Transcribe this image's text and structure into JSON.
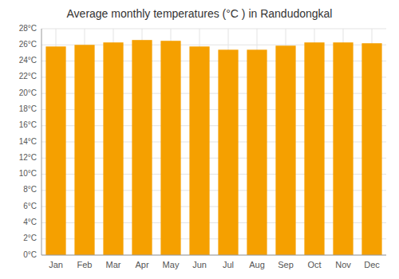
{
  "chart_data": {
    "type": "bar",
    "title": "Average monthly temperatures (°C ) in Randudongkal",
    "categories": [
      "Jan",
      "Feb",
      "Mar",
      "Apr",
      "May",
      "Jun",
      "Jul",
      "Aug",
      "Sep",
      "Oct",
      "Nov",
      "Dec"
    ],
    "values": [
      25.8,
      26.0,
      26.3,
      26.6,
      26.5,
      25.8,
      25.4,
      25.4,
      25.9,
      26.3,
      26.3,
      26.2
    ],
    "color": "#F5A000",
    "ylim": [
      0,
      28
    ],
    "yticks": [
      {
        "value": 0,
        "label": "0°C"
      },
      {
        "value": 2,
        "label": "2°C"
      },
      {
        "value": 4,
        "label": "4°C"
      },
      {
        "value": 6,
        "label": "6°C"
      },
      {
        "value": 8,
        "label": "8°C"
      },
      {
        "value": 10,
        "label": "10°C"
      },
      {
        "value": 12,
        "label": "12°C"
      },
      {
        "value": 14,
        "label": "14°C"
      },
      {
        "value": 16,
        "label": "16°C"
      },
      {
        "value": 18,
        "label": "18°C"
      },
      {
        "value": 20,
        "label": "20°C"
      },
      {
        "value": 22,
        "label": "22°C"
      },
      {
        "value": 24,
        "label": "24°C"
      },
      {
        "value": 26,
        "label": "26°C"
      },
      {
        "value": 28,
        "label": "28°C"
      }
    ],
    "grid": true
  }
}
